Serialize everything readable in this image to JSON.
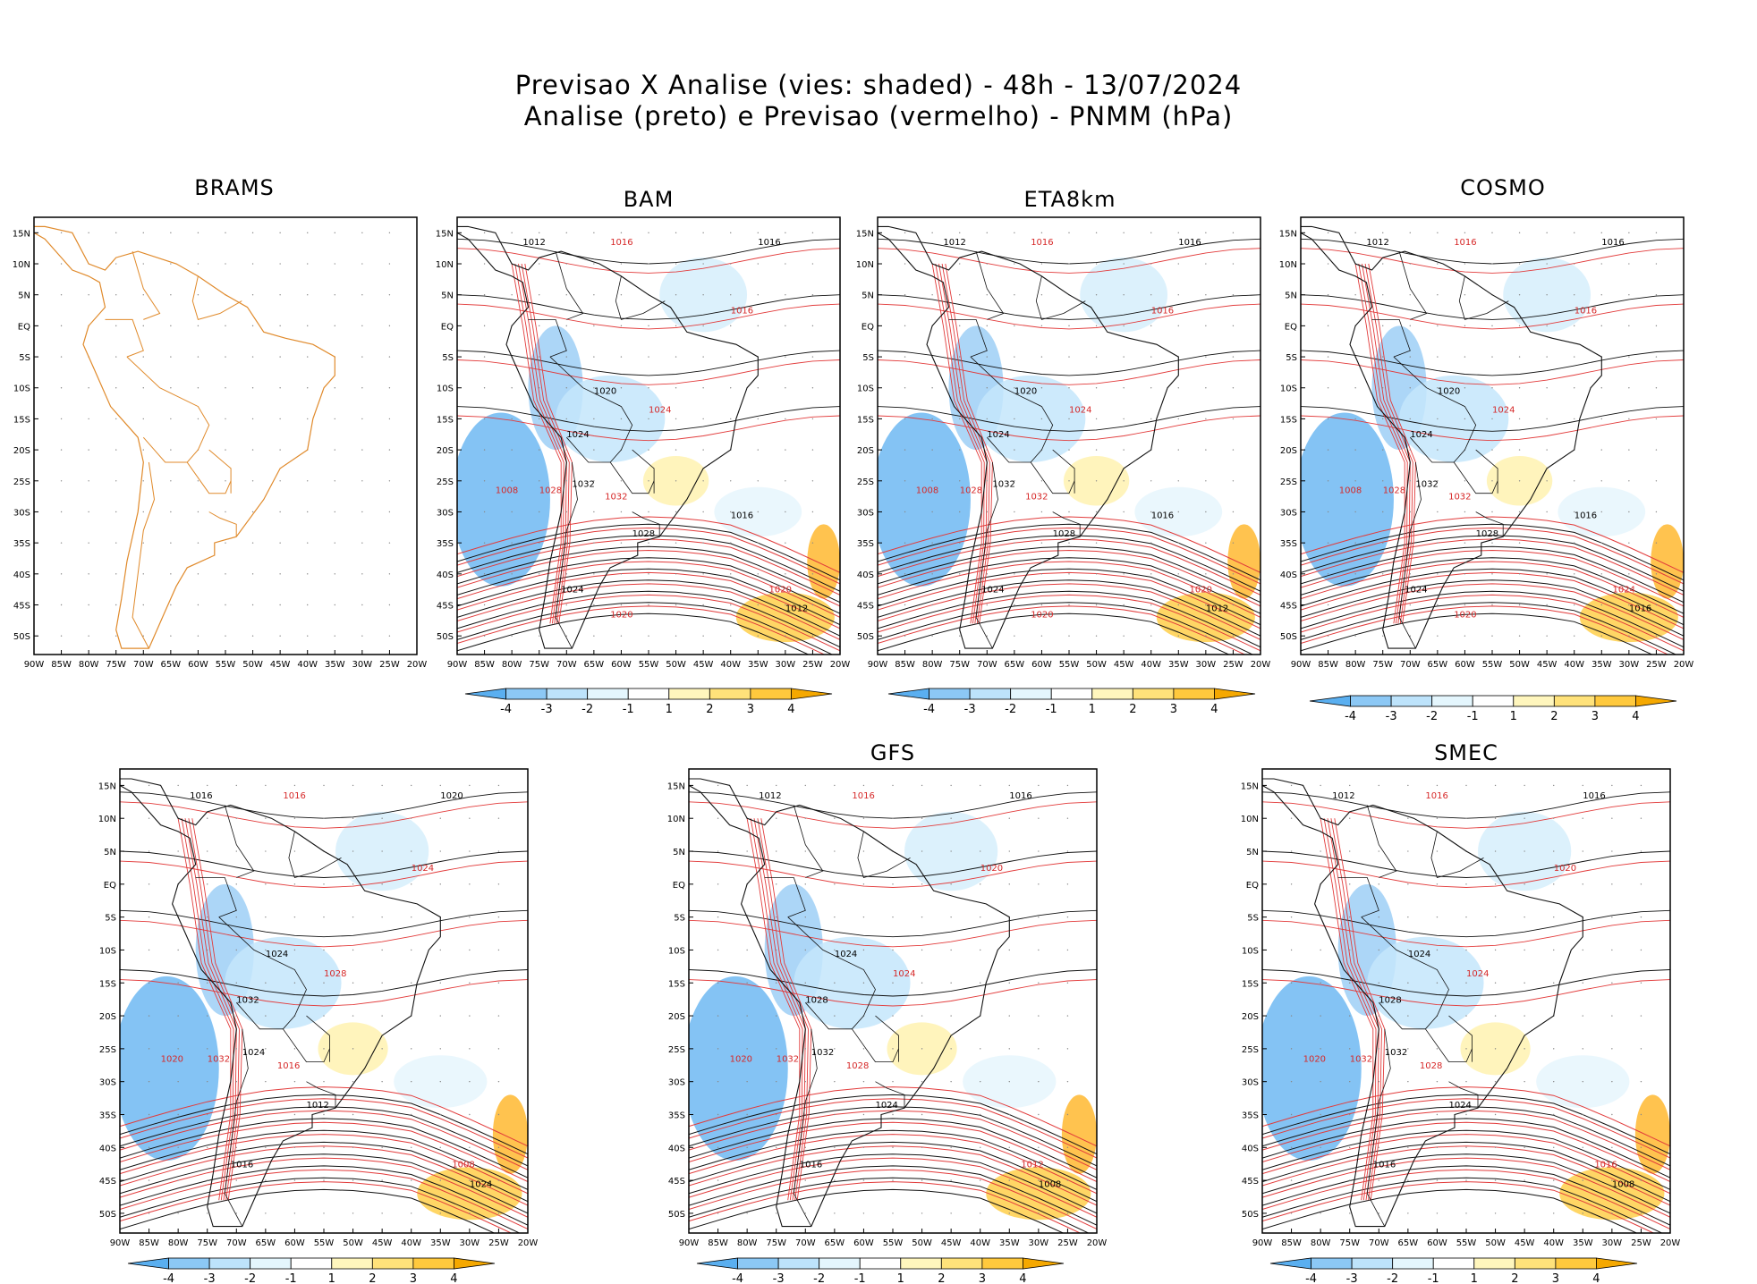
{
  "header": {
    "line1": "Previsao X Analise (vies: shaded) - 48h - 13/07/2024",
    "line2": "Analise (preto) e Previsao (vermelho) - PNMM (hPa)"
  },
  "axes": {
    "lat_labels": [
      "15N",
      "10N",
      "5N",
      "EQ",
      "5S",
      "10S",
      "15S",
      "20S",
      "25S",
      "30S",
      "35S",
      "40S",
      "45S",
      "50S"
    ],
    "lon_labels": [
      "90W",
      "85W",
      "80W",
      "75W",
      "70W",
      "65W",
      "60W",
      "55W",
      "50W",
      "45W",
      "40W",
      "35W",
      "30W",
      "25W",
      "20W"
    ]
  },
  "colorbar": {
    "labels": [
      "-4",
      "-3",
      "-2",
      "-1",
      "1",
      "2",
      "3",
      "4"
    ],
    "colors": [
      "#5aaff0",
      "#8cc8f5",
      "#bde3fb",
      "#e4f6fd",
      "#ffffff",
      "#fff6bd",
      "#ffe27a",
      "#ffc93d",
      "#f5a800"
    ]
  },
  "panels": [
    {
      "title": "BRAMS",
      "contours": [],
      "isobars": []
    },
    {
      "title": "BAM",
      "isobars": [
        "1012",
        "1016",
        "1016",
        "1016",
        "1020",
        "1024",
        "1024",
        "1028",
        "1032",
        "1032",
        "1028",
        "1020",
        "1012",
        "1008",
        "1024",
        "1020",
        "1016"
      ]
    },
    {
      "title": "ETA8km",
      "isobars": [
        "1012",
        "1016",
        "1016",
        "1016",
        "1020",
        "1024",
        "1024",
        "1028",
        "1032",
        "1032",
        "1028",
        "1020",
        "1012",
        "1008",
        "1024",
        "1020",
        "1016"
      ]
    },
    {
      "title": "COSMO",
      "isobars": [
        "1012",
        "1016",
        "1016",
        "1016",
        "1020",
        "1024",
        "1024",
        "1028",
        "1032",
        "1032",
        "1028",
        "1024",
        "1016",
        "1008",
        "1024",
        "1020",
        "1016"
      ]
    },
    {
      "title": "",
      "isobars": [
        "1016",
        "1016",
        "1020",
        "1024",
        "1024",
        "1028",
        "1032",
        "1032",
        "1024",
        "1016",
        "1012",
        "1008",
        "1024",
        "1020",
        "1016"
      ]
    },
    {
      "title": "GFS",
      "isobars": [
        "1012",
        "1016",
        "1016",
        "1020",
        "1024",
        "1024",
        "1028",
        "1032",
        "1032",
        "1028",
        "1024",
        "1012",
        "1008",
        "1020",
        "1016"
      ]
    },
    {
      "title": "SMEC",
      "isobars": [
        "1012",
        "1016",
        "1016",
        "1020",
        "1024",
        "1024",
        "1028",
        "1032",
        "1032",
        "1028",
        "1024",
        "1016",
        "1008",
        "1020",
        "1016"
      ]
    }
  ]
}
